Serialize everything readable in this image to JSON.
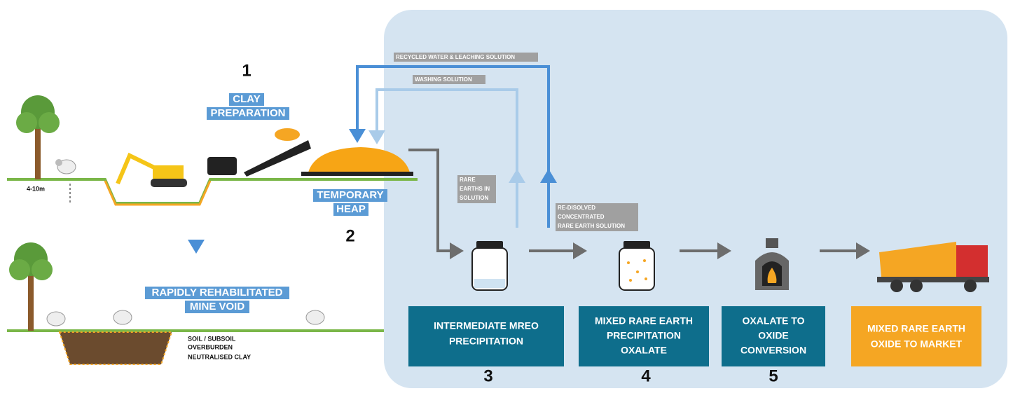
{
  "steps": [
    {
      "number": "1",
      "label": [
        "CLAY",
        "PREPARATION"
      ]
    },
    {
      "number": "2",
      "label": [
        "TEMPORARY",
        "HEAP"
      ]
    },
    {
      "number": "3",
      "label": [
        "INTERMEDIATE MREO",
        "PRECIPITATION"
      ]
    },
    {
      "number": "4",
      "label": [
        "MIXED RARE EARTH",
        "PRECIPITATION",
        "OXALATE"
      ]
    },
    {
      "number": "5",
      "label": [
        "OXALATE TO",
        "OXIDE",
        "CONVERSION"
      ]
    }
  ],
  "market": [
    "MIXED RARE EARTH",
    "OXIDE TO MARKET"
  ],
  "rehab": [
    "RAPIDLY REHABILITATED",
    "MINE VOID"
  ],
  "depth": "4-10m",
  "layers": [
    "SOIL / SUBSOIL",
    "OVERBURDEN",
    "NEUTRALISED CLAY"
  ],
  "flows": {
    "recycled": "RECYCLED WATER & LEACHING SOLUTION",
    "washing": "WASHING SOLUTION",
    "rare_earths": [
      "RARE",
      "EARTHS IN",
      "SOLUTION"
    ],
    "redissolved": [
      "RE-DISOLVED",
      "CONCENTRATED",
      "RARE EARTH SOLUTION"
    ]
  }
}
